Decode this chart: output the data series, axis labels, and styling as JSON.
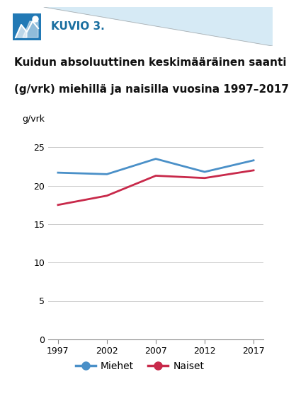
{
  "title": "Kuidun absoluuttinen keskimääräinen saanti\n(g/vrk) miehillä ja naisilla vuosina 1997–2017",
  "header_text": "KUVIO 3.",
  "ylabel": "g/vrk",
  "years": [
    1997,
    2002,
    2007,
    2012,
    2017
  ],
  "miehet": [
    21.7,
    21.5,
    23.5,
    21.8,
    23.3
  ],
  "naiset": [
    17.5,
    18.7,
    21.3,
    21.0,
    22.0
  ],
  "miehet_color": "#4a90c8",
  "naiset_color": "#c8294a",
  "ylim": [
    0,
    27
  ],
  "yticks": [
    0,
    5,
    10,
    15,
    20,
    25
  ],
  "xticks": [
    1997,
    2002,
    2007,
    2012,
    2017
  ],
  "legend_miehet": "Miehet",
  "legend_naiset": "Naiset",
  "bg_color": "#ffffff",
  "header_bg": "#d6eaf5",
  "header_color": "#1a6fa0",
  "icon_color": "#2279b5",
  "grid_color": "#cccccc",
  "line_width": 2.0,
  "marker_size": 0
}
